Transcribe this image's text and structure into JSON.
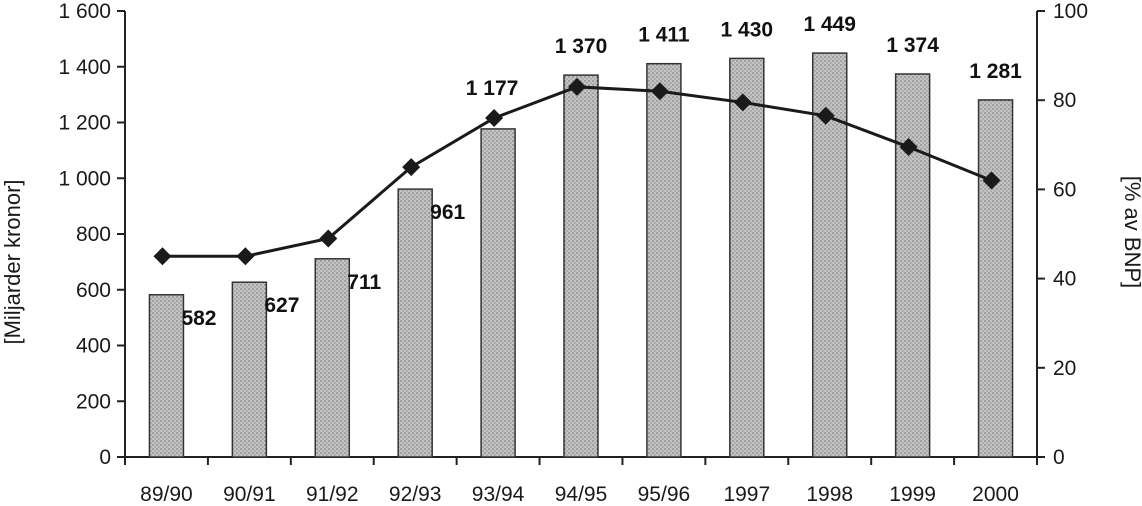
{
  "chart_data": {
    "type": "bar",
    "categories": [
      "89/90",
      "90/91",
      "91/92",
      "92/93",
      "93/94",
      "94/95",
      "95/96",
      "1997",
      "1998",
      "1999",
      "2000"
    ],
    "series": [
      {
        "type": "bar",
        "axis": "left",
        "values": [
          582,
          627,
          711,
          961,
          1177,
          1370,
          1411,
          1430,
          1449,
          1374,
          1281
        ],
        "labels": [
          "582",
          "627",
          "711",
          "961",
          "1 177",
          "1 370",
          "1 411",
          "1 430",
          "1 449",
          "1 374",
          "1 281"
        ]
      },
      {
        "type": "line",
        "axis": "right",
        "marker": "diamond",
        "values": [
          45,
          45,
          49,
          65,
          76,
          83,
          82,
          79.5,
          76.5,
          69.5,
          62
        ]
      }
    ],
    "ylabel": "[Miljarder kronor]",
    "y2label": "[% av BNP]",
    "ylim": [
      0,
      1600
    ],
    "y2lim": [
      0,
      100
    ],
    "yticks": [
      0,
      200,
      400,
      600,
      800,
      1000,
      1200,
      1400,
      1600
    ],
    "yticklabels": [
      "0",
      "200",
      "400",
      "600",
      "800",
      "1 000",
      "1 200",
      "1 400",
      "1 600"
    ],
    "y2ticks": [
      0,
      20,
      40,
      60,
      80,
      100
    ],
    "y2ticklabels": [
      "0",
      "20",
      "40",
      "60",
      "80",
      "100"
    ],
    "grid": false,
    "colors": {
      "bar_fill": "#bdbdbd",
      "bar_stroke": "#333333",
      "line": "#1a1a1a",
      "axis": "#222222"
    }
  }
}
